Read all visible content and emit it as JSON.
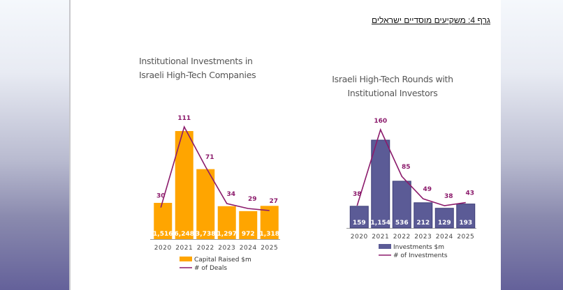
{
  "document": {
    "figure_caption": "גרף 4: משקיעים מוסדיים ישראלים"
  },
  "colors": {
    "chart1_bar": "#FFA500",
    "chart2_bar": "#5B5B96",
    "line": "#8B1A6B",
    "side_gradient_top": "#f5f8fc",
    "side_gradient_bottom": "#64619a"
  },
  "chart_data": [
    {
      "type": "bar",
      "title_line1": "Institutional Investments in",
      "title_line2": "Israeli High-Tech Companies",
      "categories": [
        "2020",
        "2021",
        "2022",
        "2023",
        "2024",
        "2025"
      ],
      "series": [
        {
          "name": "Capital Raised $m",
          "kind": "bar",
          "values": [
            1516,
            6248,
            3738,
            1297,
            972,
            1318
          ],
          "labels": [
            "1,516",
            "6,248",
            "3,738",
            "1,297",
            "972",
            "1,318"
          ]
        },
        {
          "name": "# of Deals",
          "kind": "line",
          "values": [
            30,
            111,
            71,
            34,
            29,
            27
          ],
          "labels": [
            "30",
            "111",
            "71",
            "34",
            "29",
            "27"
          ]
        }
      ],
      "legend": [
        "Capital Raised $m",
        "# of Deals"
      ],
      "legend_position": "bottom",
      "grid": false
    },
    {
      "type": "bar",
      "title_line1": "Israeli High-Tech Rounds with",
      "title_line2": "Institutional Investors",
      "categories": [
        "2020",
        "2021",
        "2022",
        "2023",
        "2024",
        "2025"
      ],
      "series": [
        {
          "name": "Investments $m",
          "kind": "bar",
          "values": [
            159,
            1154,
            536,
            212,
            129,
            193
          ],
          "labels": [
            "159",
            "1,154",
            "536",
            "212",
            "129",
            "193"
          ]
        },
        {
          "name": "# of Investments",
          "kind": "line",
          "values": [
            38,
            160,
            85,
            49,
            38,
            43
          ],
          "labels": [
            "38",
            "160",
            "85",
            "49",
            "38",
            "43"
          ]
        }
      ],
      "legend": [
        "Investments $m",
        "# of Investments"
      ],
      "legend_position": "bottom",
      "grid": false
    }
  ]
}
